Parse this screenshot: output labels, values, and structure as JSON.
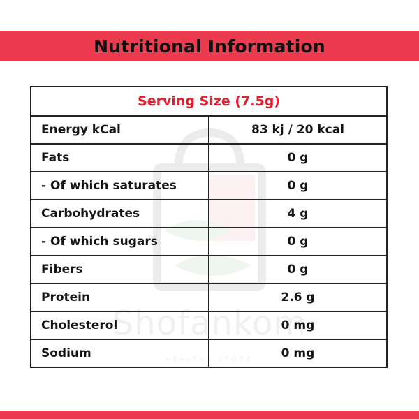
{
  "header": {
    "title": "Nutritional Information"
  },
  "table": {
    "serving_size": "Serving Size (7.5g)",
    "rows": [
      {
        "label": "Energy kCal",
        "value": "83 kj / 20 kcal"
      },
      {
        "label": "Fats",
        "value": "0 g"
      },
      {
        "label": "- Of which saturates",
        "value": "0 g"
      },
      {
        "label": "Carbohydrates",
        "value": "4 g"
      },
      {
        "label": "- Of which sugars",
        "value": "0 g"
      },
      {
        "label": "Fibers",
        "value": "0 g"
      },
      {
        "label": "Protein",
        "value": "2.6 g"
      },
      {
        "label": "Cholesterol",
        "value": "0 mg"
      },
      {
        "label": "Sodium",
        "value": "0 mg"
      }
    ]
  },
  "watermark": {
    "brand": "Shofankom",
    "tagline": "HEALTHY STORE"
  },
  "colors": {
    "accent": "#ec3a4f",
    "serving_text": "#e3202f",
    "border": "#222222"
  }
}
